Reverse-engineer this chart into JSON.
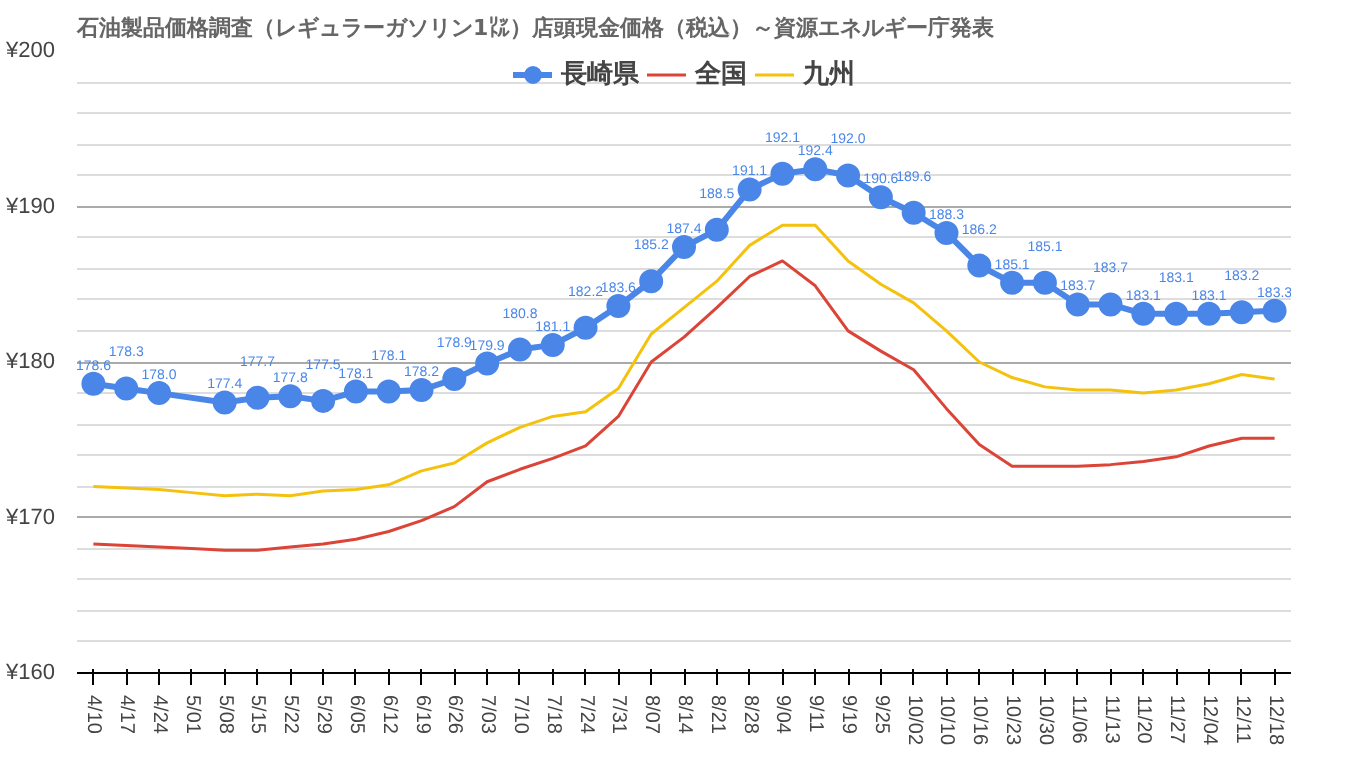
{
  "chart_data": {
    "type": "line",
    "title": "石油製品価格調査（レギュラーガソリン1㍑）店頭現金価格（税込）～資源エネルギー庁発表",
    "categories": [
      "4/10",
      "4/17",
      "4/24",
      "5/01",
      "5/08",
      "5/15",
      "5/22",
      "5/29",
      "6/05",
      "6/12",
      "6/19",
      "6/26",
      "7/03",
      "7/10",
      "7/18",
      "7/24",
      "7/31",
      "8/07",
      "8/14",
      "8/21",
      "8/28",
      "9/04",
      "9/11",
      "9/19",
      "9/25",
      "10/02",
      "10/10",
      "10/16",
      "10/23",
      "10/30",
      "11/06",
      "11/13",
      "11/20",
      "11/27",
      "12/04",
      "12/11",
      "12/18"
    ],
    "series": [
      {
        "name": "長崎県",
        "color": "#4a86e8",
        "marker": "circle",
        "value_labels": [
          "178.6",
          "178.3",
          "178.0",
          null,
          "177.4",
          "177.7",
          "177.8",
          "177.5",
          "178.1",
          "178.1",
          "178.2",
          "178.9",
          "179.9",
          "180.8",
          "181.1",
          "182.2",
          "183.6",
          "185.2",
          "187.4",
          "188.5",
          "191.1",
          "192.1",
          "192.4",
          "192.0",
          "190.6",
          "189.6",
          "188.3",
          "186.2",
          "185.1",
          "185.1",
          "183.7",
          "183.7",
          "183.1",
          "183.1",
          "183.1",
          "183.2",
          "183.3"
        ],
        "values": [
          178.6,
          178.3,
          178.0,
          null,
          177.4,
          177.7,
          177.8,
          177.5,
          178.1,
          178.1,
          178.2,
          178.9,
          179.9,
          180.8,
          181.1,
          182.2,
          183.6,
          185.2,
          187.4,
          188.5,
          191.1,
          192.1,
          192.4,
          192.0,
          190.6,
          189.6,
          188.3,
          186.2,
          185.1,
          185.1,
          183.7,
          183.7,
          183.1,
          183.1,
          183.1,
          183.2,
          183.3
        ]
      },
      {
        "name": "全国",
        "color": "#db4437",
        "marker": "none",
        "values": [
          168.3,
          168.2,
          168.1,
          168.0,
          167.9,
          167.9,
          168.1,
          168.3,
          168.6,
          169.1,
          169.8,
          170.7,
          172.3,
          173.1,
          173.8,
          174.6,
          176.5,
          180.0,
          181.6,
          183.5,
          185.5,
          186.5,
          184.9,
          182.0,
          180.7,
          179.5,
          177.0,
          174.7,
          173.3,
          173.3,
          173.3,
          173.4,
          173.6,
          173.9,
          174.6,
          175.1,
          175.1
        ]
      },
      {
        "name": "九州",
        "color": "#f4c20d",
        "marker": "none",
        "values": [
          172.0,
          171.9,
          171.8,
          171.6,
          171.4,
          171.5,
          171.4,
          171.7,
          171.8,
          172.1,
          173.0,
          173.5,
          174.8,
          175.8,
          176.5,
          176.8,
          178.3,
          181.8,
          183.5,
          185.2,
          187.5,
          188.8,
          188.8,
          186.5,
          185.0,
          183.8,
          182.0,
          180.0,
          179.0,
          178.4,
          178.2,
          178.2,
          178.0,
          178.2,
          178.6,
          179.2,
          178.9
        ]
      }
    ],
    "ylim": [
      160,
      200
    ],
    "yticks": [
      {
        "value": 160,
        "label": "¥160"
      },
      {
        "value": 162,
        "label": null
      },
      {
        "value": 164,
        "label": null
      },
      {
        "value": 166,
        "label": null
      },
      {
        "value": 168,
        "label": null
      },
      {
        "value": 170,
        "label": "¥170"
      },
      {
        "value": 172,
        "label": null
      },
      {
        "value": 174,
        "label": null
      },
      {
        "value": 176,
        "label": null
      },
      {
        "value": 178,
        "label": null
      },
      {
        "value": 180,
        "label": "¥180"
      },
      {
        "value": 182,
        "label": null
      },
      {
        "value": 184,
        "label": null
      },
      {
        "value": 186,
        "label": null
      },
      {
        "value": 188,
        "label": null
      },
      {
        "value": 190,
        "label": "¥190"
      },
      {
        "value": 192,
        "label": null
      },
      {
        "value": 194,
        "label": null
      },
      {
        "value": 196,
        "label": null
      },
      {
        "value": 198,
        "label": null
      },
      {
        "value": 200,
        "label": "¥200"
      }
    ],
    "grid": "y",
    "legend": "top",
    "line_style": "solid"
  }
}
